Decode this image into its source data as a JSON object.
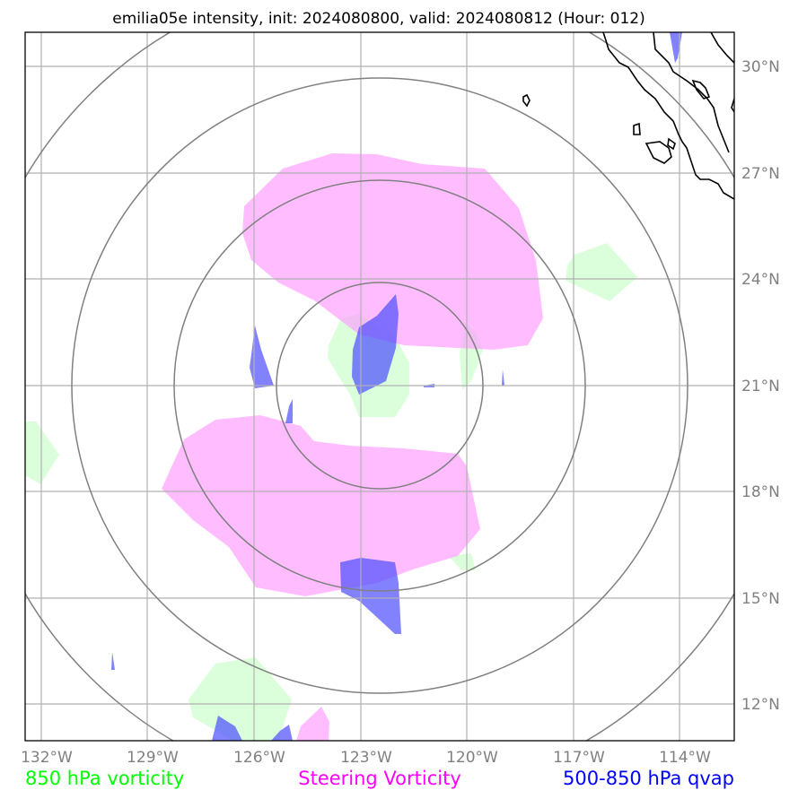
{
  "title": "emilia05e intensity, init: 2024080800, valid: 2024080812 (Hour: 012)",
  "lon_ticks": [
    "132°W",
    "129°W",
    "126°W",
    "123°W",
    "120°W",
    "117°W",
    "114°W"
  ],
  "lat_ticks": [
    "30°N",
    "27°N",
    "24°N",
    "21°N",
    "18°N",
    "15°N",
    "12°N"
  ],
  "legend": [
    {
      "label": "850 hPa vorticity",
      "color": "#00ff00"
    },
    {
      "label": "Steering Vorticity",
      "color": "#ff00ff"
    },
    {
      "label": "500-850 hPa qvap",
      "color": "#0000ff"
    }
  ],
  "colors": {
    "vorticity_850": "#ccffcc",
    "steering_vorticity": "#ff99ff",
    "qvap": "#4d4dff",
    "range_rings": "#808080",
    "gridlines": "#b0b0b0",
    "coastline": "#000000"
  }
}
